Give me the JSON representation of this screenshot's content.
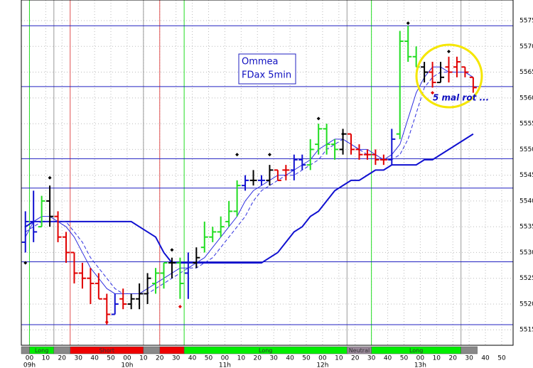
{
  "chart_data": {
    "type": "ohlc",
    "annotation_box": [
      "Ommea",
      "FDax 5min"
    ],
    "annotation": "5 mal rot ...",
    "xlim": [
      -5,
      297
    ],
    "ylim": [
      5512,
      5579
    ],
    "yticks": [
      5515,
      5520,
      5525,
      5530,
      5535,
      5540,
      5545,
      5550,
      5555,
      5560,
      5565,
      5570,
      5575
    ],
    "xticks": [
      {
        "value": 0,
        "label": "00"
      },
      {
        "value": 10,
        "label": "10"
      },
      {
        "value": 20,
        "label": "20"
      },
      {
        "value": 30,
        "label": "30"
      },
      {
        "value": 40,
        "label": "40"
      },
      {
        "value": 50,
        "label": "50"
      },
      {
        "value": 60,
        "label": "00"
      },
      {
        "value": 70,
        "label": "10"
      },
      {
        "value": 80,
        "label": "20"
      },
      {
        "value": 90,
        "label": "30"
      },
      {
        "value": 100,
        "label": "40"
      },
      {
        "value": 110,
        "label": "50"
      },
      {
        "value": 120,
        "label": "00"
      },
      {
        "value": 130,
        "label": "10"
      },
      {
        "value": 140,
        "label": "20"
      },
      {
        "value": 150,
        "label": "30"
      },
      {
        "value": 160,
        "label": "40"
      },
      {
        "value": 170,
        "label": "50"
      },
      {
        "value": 180,
        "label": "00"
      },
      {
        "value": 190,
        "label": "10"
      },
      {
        "value": 200,
        "label": "20"
      },
      {
        "value": 210,
        "label": "30"
      },
      {
        "value": 220,
        "label": "40"
      },
      {
        "value": 230,
        "label": "50"
      },
      {
        "value": 240,
        "label": "00"
      },
      {
        "value": 250,
        "label": "10"
      },
      {
        "value": 260,
        "label": "20"
      },
      {
        "value": 270,
        "label": "30"
      },
      {
        "value": 280,
        "label": "40"
      },
      {
        "value": 290,
        "label": "50"
      }
    ],
    "hour_labels": [
      {
        "value": 0,
        "label": "09h"
      },
      {
        "value": 60,
        "label": "10h"
      },
      {
        "value": 120,
        "label": "11h"
      },
      {
        "value": 180,
        "label": "12h"
      },
      {
        "value": 240,
        "label": "13h"
      }
    ],
    "grid": true,
    "x": [
      -2.5,
      2.5,
      7.5,
      12.5,
      17.5,
      22.5,
      27.5,
      32.5,
      37.5,
      42.5,
      47.5,
      52.5,
      57.5,
      62.5,
      67.5,
      72.5,
      77.5,
      82.5,
      87.5,
      92.5,
      97.5,
      102.5,
      107.5,
      112.5,
      117.5,
      122.5,
      127.5,
      132.5,
      137.5,
      142.5,
      147.5,
      152.5,
      157.5,
      162.5,
      167.5,
      172.5,
      177.5,
      182.5,
      187.5,
      192.5,
      197.5,
      202.5,
      207.5,
      212.5,
      217.5,
      222.5,
      227.5,
      232.5,
      237.5,
      242.5,
      247.5,
      252.5,
      257.5,
      262.5,
      267.5,
      272.5
    ],
    "open": [
      5532,
      5536,
      5535,
      5540,
      5537,
      5533,
      5530,
      5526,
      5525,
      5524,
      5521,
      5518,
      5521,
      5520,
      5521,
      5522,
      5524,
      5526,
      5528,
      5528,
      5526,
      5528,
      5531,
      5533,
      5534,
      5536,
      5538,
      5543,
      5544,
      5544,
      5544,
      5546,
      5546,
      5546,
      5548,
      5547,
      5551,
      5554,
      5551,
      5550,
      5553,
      5550,
      5549,
      5549,
      5548,
      5548,
      5553,
      5571,
      5568,
      5566,
      5565,
      5563,
      5566,
      5566,
      5566,
      5564
    ],
    "high": [
      5538,
      5542,
      5541,
      5543,
      5538,
      5534,
      5530,
      5528,
      5527,
      5526,
      5522,
      5522,
      5523,
      5522,
      5524,
      5526,
      5527,
      5528,
      5529,
      5529,
      5530,
      5531,
      5536,
      5535,
      5537,
      5540,
      5544,
      5545,
      5546,
      5545,
      5547,
      5546,
      5547,
      5549,
      5549,
      5552,
      5555,
      5555,
      5552,
      5554,
      5553,
      5551,
      5550,
      5550,
      5549,
      5554,
      5573,
      5574,
      5570,
      5567,
      5567,
      5567,
      5568,
      5568,
      5566,
      5564
    ],
    "low": [
      5530,
      5532,
      5535,
      5535,
      5532,
      5528,
      5524,
      5523,
      5520,
      5521,
      5516,
      5518,
      5519,
      5519,
      5519,
      5520,
      5522,
      5523,
      5525,
      5521,
      5521,
      5527,
      5530,
      5532,
      5533,
      5535,
      5537,
      5542,
      5543,
      5543,
      5543,
      5544,
      5544,
      5544,
      5546,
      5546,
      5549,
      5549,
      5548,
      5549,
      5549,
      5548,
      5548,
      5547,
      5547,
      5547,
      5552,
      5567,
      5566,
      5563,
      5562,
      5563,
      5563,
      5564,
      5564,
      5561
    ],
    "close": [
      5536,
      5534,
      5540,
      5537,
      5533,
      5530,
      5526,
      5525,
      5524,
      5521,
      5518,
      5520,
      5520,
      5521,
      5522,
      5525,
      5526,
      5528,
      5528,
      5524,
      5528,
      5529,
      5533,
      5534,
      5535,
      5538,
      5543,
      5544,
      5544,
      5544,
      5546,
      5544,
      5546,
      5548,
      5547,
      5550,
      5554,
      5551,
      5550,
      5553,
      5550,
      5549,
      5549,
      5548,
      5548,
      5552,
      5571,
      5568,
      5566,
      5565,
      5563,
      5564,
      5565,
      5567,
      5565,
      5562
    ],
    "colors": [
      "#1010d0",
      "#1010d0",
      "#22dd22",
      "#000000",
      "#e00000",
      "#e00000",
      "#e00000",
      "#e00000",
      "#e00000",
      "#e00000",
      "#e00000",
      "#1010d0",
      "#e00000",
      "#000000",
      "#000000",
      "#000000",
      "#22dd22",
      "#22dd22",
      "#000000",
      "#22dd22",
      "#1010d0",
      "#000000",
      "#22dd22",
      "#22dd22",
      "#22dd22",
      "#22dd22",
      "#22dd22",
      "#1010d0",
      "#000000",
      "#1010d0",
      "#000000",
      "#e00000",
      "#e00000",
      "#1010d0",
      "#1010d0",
      "#22dd22",
      "#22dd22",
      "#22dd22",
      "#22dd22",
      "#000000",
      "#e00000",
      "#e00000",
      "#e00000",
      "#e00000",
      "#e00000",
      "#1010d0",
      "#22dd22",
      "#22dd22",
      "#22dd22",
      "#000000",
      "#e00000",
      "#000000",
      "#e00000",
      "#e00000",
      "#e00000",
      "#e00000"
    ],
    "lines": [
      {
        "color": "#1010d0",
        "width": 2,
        "dashed": false,
        "values": [
          5535,
          5536,
          5536,
          5536,
          5536,
          5536,
          5536,
          5536,
          5536,
          5536,
          5536,
          5536,
          5536,
          5536,
          5535,
          5534,
          5533,
          5530,
          5528,
          5528,
          5528,
          5528,
          5528,
          5528,
          5528,
          5528,
          5528,
          5528,
          5528,
          5528,
          5529,
          5530,
          5532,
          5534,
          5535,
          5537,
          5538,
          5540,
          5542,
          5543,
          5544,
          5544,
          5545,
          5546,
          5546,
          5547,
          5547,
          5547,
          5547,
          5548,
          5548,
          5549,
          5550,
          5551,
          5552,
          5553
        ]
      },
      {
        "color": "#3030e0",
        "width": 1,
        "dashed": false,
        "values": [
          5533,
          5536,
          5537,
          5537,
          5536,
          5535,
          5533,
          5530,
          5527,
          5525,
          5523,
          5522,
          5522,
          5522,
          5522,
          5523,
          5524,
          5525,
          5526,
          5527,
          5527,
          5528,
          5529,
          5531,
          5533,
          5535,
          5537,
          5540,
          5542,
          5543,
          5544,
          5545,
          5545,
          5546,
          5547,
          5548,
          5550,
          5551,
          5552,
          5552,
          5551,
          5550,
          5550,
          5549,
          5548,
          5549,
          5551,
          5556,
          5561,
          5564,
          5566,
          5566,
          5565,
          5565,
          5565,
          5564
        ]
      },
      {
        "color": "#3030e0",
        "width": 1,
        "dashed": true,
        "values": [
          5534,
          5535,
          5536,
          5536,
          5536,
          5536,
          5534,
          5532,
          5529,
          5527,
          5525,
          5523,
          5522,
          5522,
          5522,
          5522,
          5523,
          5524,
          5525,
          5526,
          5527,
          5527,
          5528,
          5529,
          5531,
          5533,
          5535,
          5537,
          5540,
          5542,
          5543,
          5544,
          5545,
          5545,
          5546,
          5547,
          5548,
          5550,
          5551,
          5552,
          5551,
          5550,
          5549,
          5549,
          5548,
          5548,
          5549,
          5552,
          5557,
          5562,
          5564,
          5565,
          5565,
          5565,
          5565,
          5564
        ]
      }
    ],
    "markers": {
      "x": [
        -2.5,
        12.5,
        47.5,
        87.5,
        92.5,
        127.5,
        147.5,
        177.5,
        192.5,
        232.5,
        247.5,
        257.5
      ],
      "y": [
        5528,
        5544.5,
        5516.5,
        5530.5,
        5519.5,
        5549,
        5549,
        5556,
        5553,
        5574.5,
        5561,
        5569
      ],
      "colors": [
        "#000000",
        "#000000",
        "#e00000",
        "#000000",
        "#e00000",
        "#000000",
        "#000000",
        "#000000",
        "#000000",
        "#000000",
        "#e00000",
        "#000000"
      ]
    },
    "levels": [
      5574,
      5562.2,
      5548.2,
      5542.5,
      5528.2,
      5516
    ],
    "level_color": "#2020c0",
    "vlines": {
      "x": [
        0,
        15,
        25,
        70,
        80,
        95,
        195,
        210,
        265
      ],
      "colors": [
        "#22dd22",
        "#999999",
        "#e05050",
        "#999999",
        "#e05050",
        "#22dd22",
        "#999999",
        "#22dd22",
        "#999999"
      ]
    },
    "regime": {
      "starts": [
        -5,
        0,
        15,
        25,
        70,
        80,
        95,
        195,
        210,
        265
      ],
      "ends": [
        0,
        15,
        25,
        70,
        80,
        95,
        195,
        210,
        265,
        275
      ],
      "labels": [
        null,
        "Long",
        null,
        "Short",
        null,
        null,
        "Long",
        "Neutral",
        "Long",
        null
      ],
      "colors": [
        "#888888",
        "#00ee00",
        "#888888",
        "#ee0000",
        "#888888",
        "#ee0000",
        "#00ee00",
        "#998899",
        "#00ee00",
        "#888888"
      ]
    }
  }
}
